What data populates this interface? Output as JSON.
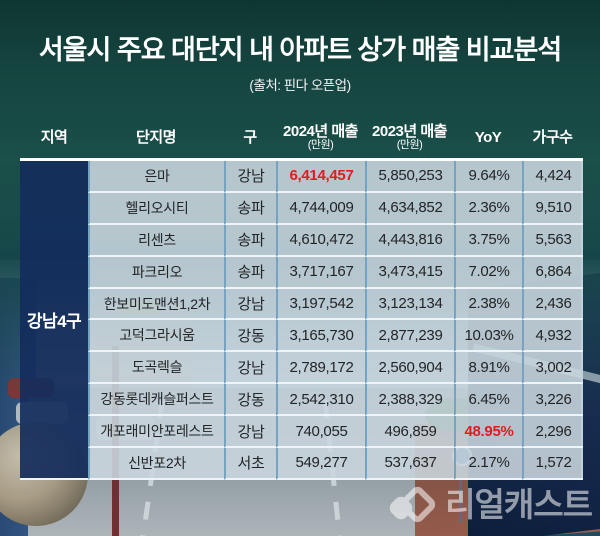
{
  "title": "서울시 주요 대단지 내 아파트 상가 매출 비교분석",
  "subtitle": "(출처: 핀다 오픈업)",
  "watermark": {
    "text": "리얼캐스트",
    "icon": "overlapping-cubes-logo"
  },
  "colors": {
    "background_teal_top": "#0e3531",
    "background_teal_mid": "#1b4f49",
    "region_cell_navy": "#132d5c",
    "data_cell": "#cbd7df",
    "column_divider_blue": "#76a3c2",
    "row_divider_white": "#eef4f7",
    "highlight_red": "#e31b1f",
    "title_white": "#ffffff"
  },
  "table": {
    "region_label": "강남4구",
    "columns": [
      {
        "key": "region",
        "label": "지역",
        "sub": ""
      },
      {
        "key": "name",
        "label": "단지명",
        "sub": ""
      },
      {
        "key": "gu",
        "label": "구",
        "sub": ""
      },
      {
        "key": "sales2024",
        "label": "2024년 매출",
        "sub": "(만원)"
      },
      {
        "key": "sales2023",
        "label": "2023년 매출",
        "sub": "(만원)"
      },
      {
        "key": "yoy",
        "label": "YoY",
        "sub": ""
      },
      {
        "key": "households",
        "label": "가구수",
        "sub": ""
      }
    ],
    "rows": [
      {
        "name": "은마",
        "gu": "강남",
        "sales2024": "6,414,457",
        "sales2023": "5,850,253",
        "yoy": "9.64%",
        "households": "4,424",
        "highlight": "sales2024"
      },
      {
        "name": "헬리오시티",
        "gu": "송파",
        "sales2024": "4,744,009",
        "sales2023": "4,634,852",
        "yoy": "2.36%",
        "households": "9,510",
        "highlight": ""
      },
      {
        "name": "리센츠",
        "gu": "송파",
        "sales2024": "4,610,472",
        "sales2023": "4,443,816",
        "yoy": "3.75%",
        "households": "5,563",
        "highlight": ""
      },
      {
        "name": "파크리오",
        "gu": "송파",
        "sales2024": "3,717,167",
        "sales2023": "3,473,415",
        "yoy": "7.02%",
        "households": "6,864",
        "highlight": ""
      },
      {
        "name": "한보미도맨션1,2차",
        "gu": "강남",
        "sales2024": "3,197,542",
        "sales2023": "3,123,134",
        "yoy": "2.38%",
        "households": "2,436",
        "highlight": ""
      },
      {
        "name": "고덕그라시움",
        "gu": "강동",
        "sales2024": "3,165,730",
        "sales2023": "2,877,239",
        "yoy": "10.03%",
        "households": "4,932",
        "highlight": ""
      },
      {
        "name": "도곡렉슬",
        "gu": "강남",
        "sales2024": "2,789,172",
        "sales2023": "2,560,904",
        "yoy": "8.91%",
        "households": "3,002",
        "highlight": ""
      },
      {
        "name": "강동롯데캐슬퍼스트",
        "gu": "강동",
        "sales2024": "2,542,310",
        "sales2023": "2,388,329",
        "yoy": "6.45%",
        "households": "3,226",
        "highlight": ""
      },
      {
        "name": "개포래미안포레스트",
        "gu": "강남",
        "sales2024": "740,055",
        "sales2023": "496,859",
        "yoy": "48.95%",
        "households": "2,296",
        "highlight": "yoy"
      },
      {
        "name": "신반포2차",
        "gu": "서초",
        "sales2024": "549,277",
        "sales2023": "537,637",
        "yoy": "2.17%",
        "households": "1,572",
        "highlight": ""
      }
    ]
  },
  "chart_data": {
    "type": "table",
    "title": "서울시 주요 대단지 내 아파트 상가 매출 비교분석",
    "source": "(출처: 핀다 오픈업)",
    "region_group": "강남4구",
    "columns": [
      "지역",
      "단지명",
      "구",
      "2024년 매출(만원)",
      "2023년 매출(만원)",
      "YoY",
      "가구수"
    ],
    "rows": [
      [
        "강남4구",
        "은마",
        "강남",
        6414457,
        5850253,
        "9.64%",
        4424
      ],
      [
        "강남4구",
        "헬리오시티",
        "송파",
        4744009,
        4634852,
        "2.36%",
        9510
      ],
      [
        "강남4구",
        "리센츠",
        "송파",
        4610472,
        4443816,
        "3.75%",
        5563
      ],
      [
        "강남4구",
        "파크리오",
        "송파",
        3717167,
        3473415,
        "7.02%",
        6864
      ],
      [
        "강남4구",
        "한보미도맨션1,2차",
        "강남",
        3197542,
        3123134,
        "2.38%",
        2436
      ],
      [
        "강남4구",
        "고덕그라시움",
        "강동",
        3165730,
        2877239,
        "10.03%",
        4932
      ],
      [
        "강남4구",
        "도곡렉슬",
        "강남",
        2789172,
        2560904,
        "8.91%",
        3002
      ],
      [
        "강남4구",
        "강동롯데캐슬퍼스트",
        "강동",
        2542310,
        2388329,
        "6.45%",
        3226
      ],
      [
        "강남4구",
        "개포래미안포레스트",
        "강남",
        740055,
        496859,
        "48.95%",
        2296
      ],
      [
        "강남4구",
        "신반포2차",
        "서초",
        549277,
        537637,
        "2.17%",
        1572
      ]
    ],
    "highlighted_cells": [
      {
        "row": 0,
        "column": "2024년 매출(만원)",
        "color": "#e31b1f"
      },
      {
        "row": 8,
        "column": "YoY",
        "color": "#e31b1f"
      }
    ]
  }
}
